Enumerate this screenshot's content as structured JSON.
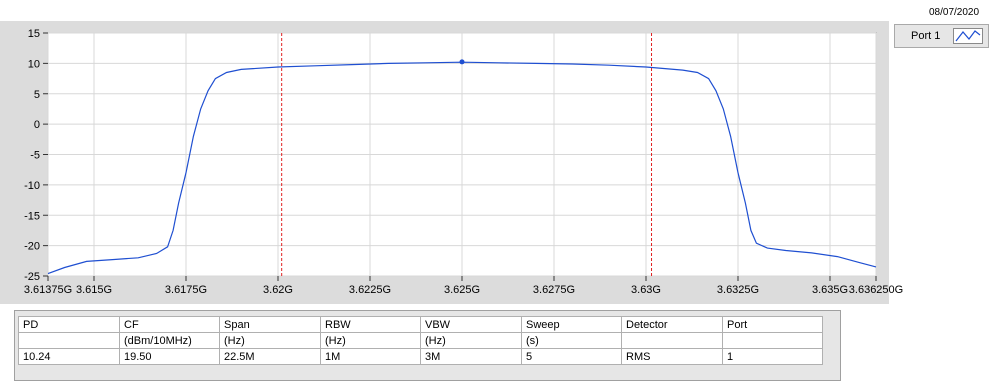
{
  "date": "08/07/2020",
  "legend": {
    "label": "Port 1",
    "icon": "line-plot-icon"
  },
  "chart_data": {
    "type": "line",
    "title": "",
    "xlabel": "",
    "ylabel": "",
    "xlim": [
      3613.75,
      3636.25
    ],
    "ylim": [
      -25,
      15
    ],
    "x_ticks": [
      3613.75,
      3615,
      3617.5,
      3620,
      3622.5,
      3625,
      3627.5,
      3630,
      3632.5,
      3635,
      3636.25
    ],
    "x_tick_labels": [
      "3.61375G",
      "3.615G",
      "3.6175G",
      "3.62G",
      "3.6225G",
      "3.625G",
      "3.6275G",
      "3.63G",
      "3.6325G",
      "3.635G",
      "3.636250G"
    ],
    "y_ticks": [
      15,
      10,
      5,
      0,
      -5,
      -10,
      -15,
      -20,
      -25
    ],
    "y_tick_labels": [
      "15",
      "10",
      "5",
      "0",
      "-5",
      "-10",
      "-15",
      "-20",
      "-25"
    ],
    "grid": true,
    "series": [
      {
        "color": "#1f4fd1",
        "x": [
          3613.75,
          3614.2,
          3614.8,
          3615.5,
          3616.2,
          3616.7,
          3617.0,
          3617.15,
          3617.3,
          3617.5,
          3617.7,
          3617.9,
          3618.1,
          3618.3,
          3618.6,
          3619.0,
          3620.0,
          3621.0,
          3622.0,
          3623.0,
          3624.0,
          3625.0,
          3626.0,
          3627.0,
          3628.0,
          3629.0,
          3630.0,
          3631.0,
          3631.4,
          3631.7,
          3631.9,
          3632.1,
          3632.3,
          3632.5,
          3632.7,
          3632.85,
          3633.0,
          3633.3,
          3633.8,
          3634.5,
          3635.2,
          3635.8,
          3636.25
        ],
        "y": [
          -24.6,
          -23.6,
          -22.6,
          -22.3,
          -22.0,
          -21.3,
          -20.2,
          -17.5,
          -13.0,
          -8.0,
          -2.0,
          2.5,
          5.5,
          7.5,
          8.5,
          9.0,
          9.4,
          9.6,
          9.8,
          10.0,
          10.1,
          10.2,
          10.1,
          10.0,
          9.9,
          9.7,
          9.4,
          8.9,
          8.5,
          7.5,
          5.5,
          2.5,
          -2.0,
          -8.0,
          -13.0,
          -17.5,
          -19.6,
          -20.4,
          -20.8,
          -21.2,
          -21.8,
          -22.8,
          -23.5
        ]
      }
    ],
    "markers": [
      {
        "type": "vline",
        "x": 3620.1,
        "color": "#e02020"
      },
      {
        "type": "vline",
        "x": 3630.15,
        "color": "#e02020"
      },
      {
        "type": "point",
        "x": 3625.0,
        "y": 10.24,
        "color": "#1f4fd1"
      }
    ]
  },
  "table": {
    "headers": [
      "PD",
      "CF",
      "Span",
      "RBW",
      "VBW",
      "Sweep",
      "Detector",
      "Port"
    ],
    "units": [
      "",
      "(dBm/10MHz)",
      "(Hz)",
      "(Hz)",
      "(Hz)",
      "(s)",
      "",
      ""
    ],
    "values": [
      "10.24",
      "19.50",
      "22.5M",
      "1M",
      "3M",
      "5",
      "RMS",
      "1"
    ]
  }
}
